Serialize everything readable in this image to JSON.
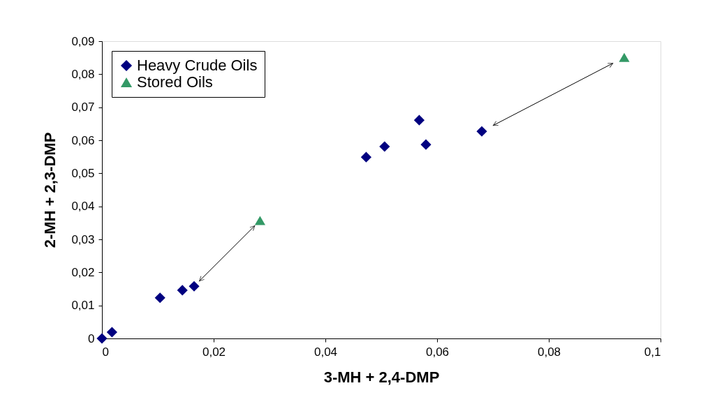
{
  "chart_data": {
    "type": "scatter",
    "xlabel": "3-MH + 2,4-DMP",
    "ylabel": "2-MH + 2,3-DMP",
    "xlim": [
      0,
      0.1
    ],
    "ylim": [
      0,
      0.09
    ],
    "xticks": [
      0,
      {
        "value": 0.02,
        "label": "0,02"
      },
      {
        "value": 0.04,
        "label": "0,04"
      },
      {
        "value": 0.06,
        "label": "0,06"
      },
      {
        "value": 0.08,
        "label": "0,08"
      },
      {
        "value": 0.1,
        "label": "0,1"
      }
    ],
    "yticks": [
      0,
      {
        "value": 0.01,
        "label": "0,01"
      },
      {
        "value": 0.02,
        "label": "0,02"
      },
      {
        "value": 0.03,
        "label": "0,03"
      },
      {
        "value": 0.04,
        "label": "0,04"
      },
      {
        "value": 0.05,
        "label": "0,05"
      },
      {
        "value": 0.06,
        "label": "0,06"
      },
      {
        "value": 0.07,
        "label": "0,07"
      },
      {
        "value": 0.08,
        "label": "0,08"
      },
      {
        "value": 0.09,
        "label": "0,09"
      }
    ],
    "grid": false,
    "legend": "top left",
    "series": [
      {
        "name": "Heavy Crude Oils",
        "color": "#000080",
        "marker": "diamond",
        "x": [
          0,
          0.0018,
          0.0104,
          0.0144,
          0.0165,
          0.0473,
          0.0506,
          0.0568,
          0.058,
          0.068
        ],
        "values": [
          0,
          0.0019,
          0.0123,
          0.0146,
          0.0158,
          0.0549,
          0.0581,
          0.0661,
          0.0587,
          0.0627
        ]
      },
      {
        "name": "Stored Oils",
        "color": "#339966",
        "marker": "triangle",
        "x": [
          0.0283,
          0.0935
        ],
        "values": [
          0.0357,
          0.0851
        ]
      }
    ]
  }
}
